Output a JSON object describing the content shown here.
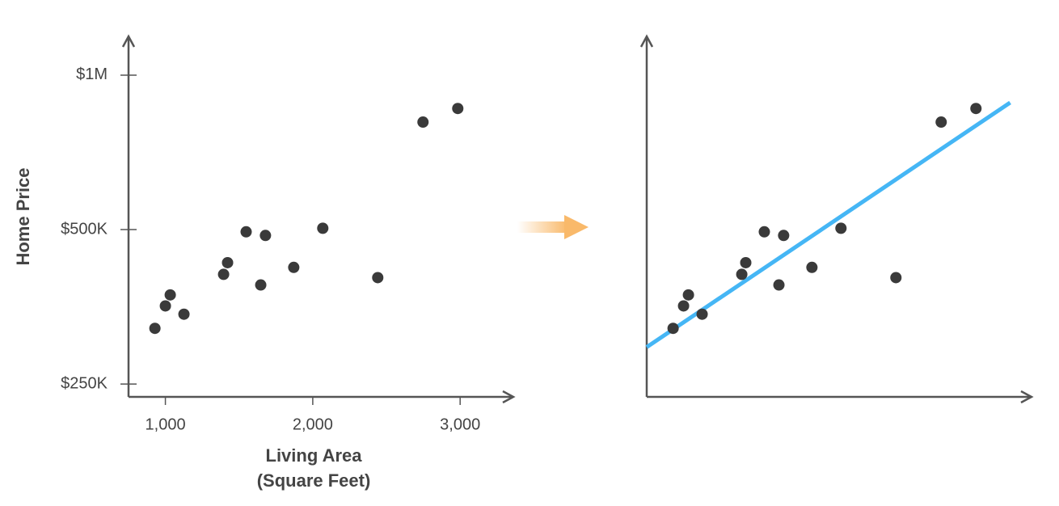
{
  "chart_data": [
    {
      "type": "scatter",
      "ylabel": "Home Price",
      "xlabel": [
        "Living Area",
        "(Square Feet)"
      ],
      "y_scale": "log",
      "color": "#3a3a3a",
      "xlim": [
        750,
        3350
      ],
      "ylim": [
        236000,
        1190000
      ],
      "xticks": [
        {
          "value": 1000,
          "label": "1,000"
        },
        {
          "value": 2000,
          "label": "2,000"
        },
        {
          "value": 3000,
          "label": "3,000"
        }
      ],
      "yticks": [
        {
          "value": 250000,
          "label": "$250K"
        },
        {
          "value": 500000,
          "label": "$500K"
        },
        {
          "value": 1000000,
          "label": "$1M"
        }
      ],
      "x": [
        929,
        1000,
        1033,
        1126,
        1395,
        1422,
        1548,
        1647,
        1679,
        1871,
        2068,
        2441,
        2748,
        2984
      ],
      "values": [
        321000,
        355000,
        373000,
        342000,
        409000,
        431000,
        495000,
        390000,
        487000,
        422000,
        503000,
        403000,
        810000,
        861000
      ]
    },
    {
      "type": "scatter",
      "y_scale": "log",
      "color": "#3a3a3a",
      "xlim": [
        750,
        3350
      ],
      "ylim": [
        236000,
        1190000
      ],
      "x": [
        929,
        1000,
        1033,
        1126,
        1395,
        1422,
        1548,
        1647,
        1679,
        1871,
        2068,
        2441,
        2748,
        2984
      ],
      "values": [
        321000,
        355000,
        373000,
        342000,
        409000,
        431000,
        495000,
        390000,
        487000,
        422000,
        503000,
        403000,
        810000,
        861000
      ],
      "fit_line": {
        "x": [
          750,
          3216
        ],
        "values": [
          295000,
          884000
        ],
        "color": "#45b6f5"
      }
    }
  ]
}
